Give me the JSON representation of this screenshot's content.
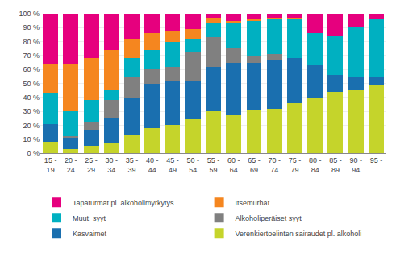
{
  "chart_data": {
    "type": "bar",
    "stacked": true,
    "grid": true,
    "legend": "bottom",
    "categories": [
      "15 -\n19",
      "20 -\n24",
      "25 -\n29",
      "30 -\n34",
      "35 -\n39",
      "40 -\n44",
      "45 -\n49",
      "50 -\n54",
      "55 -\n59",
      "60 -\n64",
      "65 -\n69",
      "70 -\n74",
      "75 -\n79",
      "80 -\n84",
      "85 -\n89",
      "90 -\n94",
      "95 -"
    ],
    "series": [
      {
        "name": "Verenkiertoelinten sairaudet pl. alkoholi",
        "color": "#c5d42b",
        "values": [
          8,
          3,
          5,
          7,
          13,
          18,
          20,
          24,
          30,
          27,
          31,
          32,
          36,
          40,
          44,
          45,
          49
        ]
      },
      {
        "name": "Kasvaimet",
        "color": "#1a6faf",
        "values": [
          13,
          8,
          12,
          18,
          27,
          32,
          32,
          28,
          32,
          38,
          34,
          35,
          32,
          23,
          12,
          10,
          6
        ]
      },
      {
        "name": "Alkoholiperäiset syyt",
        "color": "#808080",
        "values": [
          0,
          1,
          5,
          13,
          15,
          10,
          10,
          21,
          21,
          10,
          5,
          4,
          0,
          0,
          0,
          0,
          0
        ]
      },
      {
        "name": "Muut  syyt",
        "color": "#00b0c1",
        "values": [
          22,
          18,
          16,
          7,
          13,
          14,
          18,
          9,
          10,
          18,
          25,
          25,
          28,
          23,
          28,
          35,
          41
        ]
      },
      {
        "name": "Itsemurhat",
        "color": "#f5861f",
        "values": [
          21,
          34,
          30,
          29,
          14,
          12,
          8,
          7,
          4,
          2,
          1,
          1,
          1,
          0,
          0,
          0,
          0
        ]
      },
      {
        "name": "Tapaturmat pl. alkoholimyrkytys",
        "color": "#e6007e",
        "values": [
          36,
          36,
          32,
          26,
          18,
          14,
          12,
          11,
          3,
          5,
          4,
          3,
          3,
          14,
          16,
          10,
          4
        ]
      }
    ],
    "ylim": [
      0,
      100
    ],
    "yticks": [
      {
        "value": 0,
        "label": "0 %"
      },
      {
        "value": 10,
        "label": "10 %"
      },
      {
        "value": 20,
        "label": "20 %"
      },
      {
        "value": 30,
        "label": "30 %"
      },
      {
        "value": 40,
        "label": "40 %"
      },
      {
        "value": 50,
        "label": "50 %"
      },
      {
        "value": 60,
        "label": "60 %"
      },
      {
        "value": 70,
        "label": "70 %"
      },
      {
        "value": 80,
        "label": "80 %"
      },
      {
        "value": 90,
        "label": "90 %"
      },
      {
        "value": 100,
        "label": "100 %"
      }
    ]
  }
}
